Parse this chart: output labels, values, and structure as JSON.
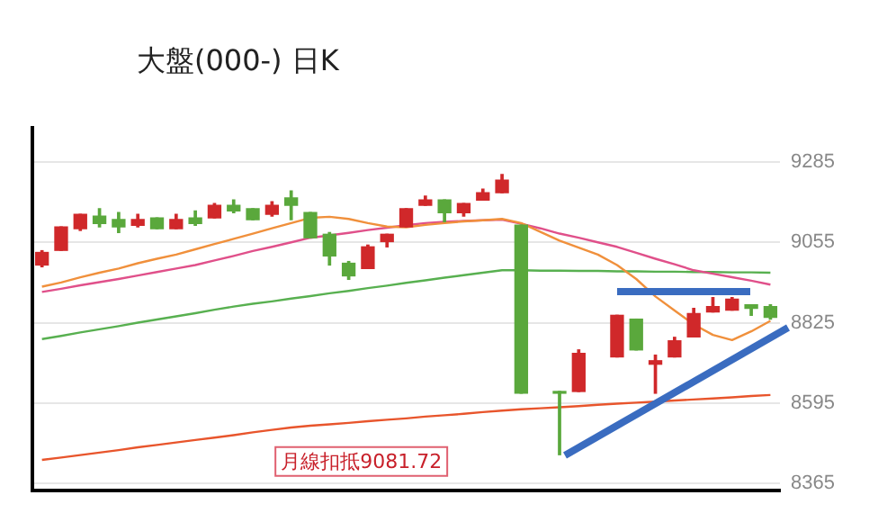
{
  "chart_data": {
    "type": "candlestick",
    "title": "大盤(000-) 日K",
    "categories": [
      null,
      null,
      null,
      null,
      null,
      null,
      null,
      null,
      null,
      null,
      null,
      null,
      null,
      null,
      null,
      null,
      null,
      null,
      null,
      null,
      null,
      null,
      null,
      null,
      null,
      null,
      null,
      null,
      null,
      null,
      null,
      null,
      null,
      null,
      null,
      null,
      null,
      null,
      null
    ],
    "ohlc": [
      [
        8990,
        9031,
        8985,
        9026
      ],
      [
        9032,
        9099,
        9032,
        9099
      ],
      [
        9094,
        9135,
        9089,
        9135
      ],
      [
        9130,
        9151,
        9099,
        9109
      ],
      [
        9120,
        9140,
        9083,
        9099
      ],
      [
        9104,
        9135,
        9099,
        9120
      ],
      [
        9125,
        9125,
        9094,
        9094
      ],
      [
        9094,
        9135,
        9094,
        9120
      ],
      [
        9125,
        9145,
        9104,
        9109
      ],
      [
        9125,
        9166,
        9125,
        9161
      ],
      [
        9161,
        9176,
        9140,
        9145
      ],
      [
        9151,
        9151,
        9120,
        9120
      ],
      [
        9135,
        9171,
        9130,
        9161
      ],
      [
        9182,
        9202,
        9120,
        9161
      ],
      [
        9140,
        9140,
        9068,
        9068
      ],
      [
        9078,
        9083,
        8990,
        9016
      ],
      [
        8995,
        9000,
        8949,
        8959
      ],
      [
        8980,
        9047,
        8980,
        9042
      ],
      [
        9057,
        9078,
        9042,
        9078
      ],
      [
        9099,
        9151,
        9099,
        9151
      ],
      [
        9161,
        9187,
        9161,
        9176
      ],
      [
        9176,
        9176,
        9114,
        9140
      ],
      [
        9140,
        9166,
        9130,
        9166
      ],
      [
        9176,
        9207,
        9176,
        9197
      ],
      [
        9197,
        9249,
        9197,
        9233
      ],
      [
        9104,
        9104,
        8623,
        8623
      ],
      null,
      [
        8628,
        8628,
        8447,
        8623
      ],
      [
        8628,
        8747,
        8628,
        8737
      ],
      null,
      [
        8727,
        8846,
        8727,
        8846
      ],
      [
        8835,
        8835,
        8747,
        8747
      ],
      [
        8706,
        8732,
        8623,
        8716
      ],
      [
        8727,
        8783,
        8727,
        8773
      ],
      [
        8784,
        8866,
        8784,
        8851
      ],
      [
        8856,
        8897,
        8856,
        8871
      ],
      [
        8861,
        8897,
        8861,
        8892
      ],
      [
        8876,
        8876,
        8846,
        8866
      ],
      [
        8871,
        8876,
        8835,
        8840
      ]
    ],
    "colors": [
      "#d0282a",
      "#d0282a",
      "#d0282a",
      "#5aa83c",
      "#5aa83c",
      "#d0282a",
      "#5aa83c",
      "#d0282a",
      "#5aa83c",
      "#d0282a",
      "#5aa83c",
      "#5aa83c",
      "#d0282a",
      "#5aa83c",
      "#5aa83c",
      "#5aa83c",
      "#5aa83c",
      "#d0282a",
      "#d0282a",
      "#d0282a",
      "#d0282a",
      "#5aa83c",
      "#d0282a",
      "#d0282a",
      "#d0282a",
      "#5aa83c",
      null,
      "#5aa83c",
      "#d0282a",
      null,
      "#d0282a",
      "#5aa83c",
      "#d0282a",
      "#d0282a",
      "#d0282a",
      "#d0282a",
      "#d0282a",
      "#5aa83c",
      "#5aa83c"
    ],
    "series": [
      {
        "type": "line",
        "color": "#f0903c",
        "values": [
          8928,
          8940,
          8955,
          8968,
          8980,
          8995,
          9008,
          9020,
          9035,
          9050,
          9065,
          9080,
          9095,
          9110,
          9125,
          9128,
          9122,
          9110,
          9100,
          9098,
          9105,
          9110,
          9115,
          9118,
          9122,
          9110,
          9085,
          9060,
          9040,
          9020,
          8990,
          8950,
          8900,
          8860,
          8820,
          8790,
          8775,
          8800,
          8830
        ]
      },
      {
        "type": "line",
        "color": "#e0508a",
        "values": [
          8913,
          8922,
          8932,
          8941,
          8950,
          8960,
          8970,
          8980,
          8990,
          9003,
          9016,
          9030,
          9042,
          9055,
          9068,
          9075,
          9082,
          9090,
          9097,
          9104,
          9110,
          9114,
          9116,
          9118,
          9120,
          9108,
          9095,
          9080,
          9068,
          9055,
          9042,
          9025,
          9008,
          8992,
          8975,
          8965,
          8955,
          8945,
          8934
        ]
      },
      {
        "type": "line",
        "color": "#58b050",
        "values": [
          8778,
          8787,
          8797,
          8806,
          8815,
          8825,
          8834,
          8843,
          8852,
          8862,
          8871,
          8879,
          8886,
          8894,
          8901,
          8909,
          8916,
          8924,
          8931,
          8939,
          8946,
          8954,
          8961,
          8968,
          8975,
          8975,
          8974,
          8974,
          8973,
          8973,
          8972,
          8972,
          8971,
          8971,
          8970,
          8970,
          8969,
          8969,
          8968
        ]
      },
      {
        "type": "line",
        "color": "#e8552c",
        "values": [
          8432,
          8439,
          8446,
          8453,
          8460,
          8468,
          8475,
          8482,
          8489,
          8496,
          8503,
          8511,
          8518,
          8525,
          8530,
          8534,
          8538,
          8543,
          8547,
          8551,
          8556,
          8560,
          8564,
          8569,
          8573,
          8577,
          8580,
          8583,
          8586,
          8590,
          8593,
          8596,
          8599,
          8602,
          8605,
          8608,
          8611,
          8615,
          8618
        ]
      }
    ],
    "ylim": [
      8345,
      9388
    ],
    "yticks": [
      9285,
      9055,
      8825,
      8595,
      8365
    ],
    "grid": "y",
    "legend": false,
    "tick_labels": "y",
    "annotations": [
      "月線扣抵9081.72"
    ]
  }
}
